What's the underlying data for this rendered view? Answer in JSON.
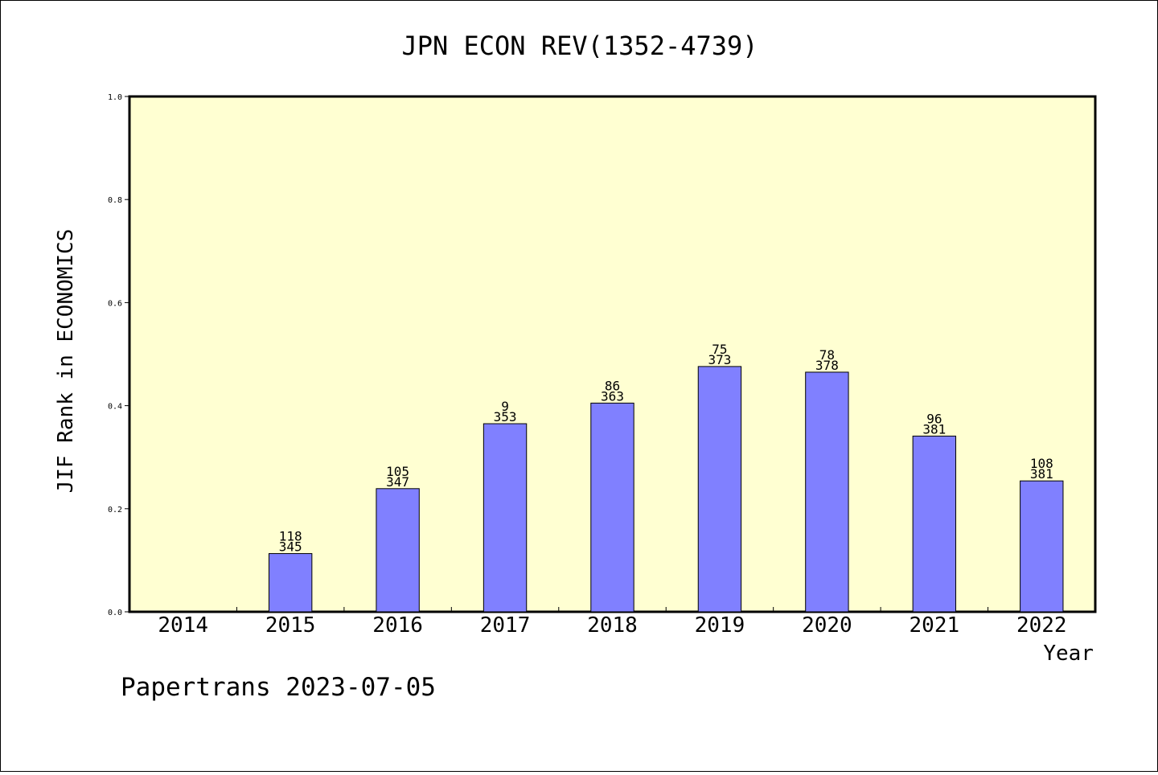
{
  "chart_data": {
    "type": "bar",
    "title": "JPN ECON REV(1352-4739)",
    "xlabel": "Year",
    "ylabel": "JIF Rank in ECONOMICS",
    "ylim": [
      0,
      1.0
    ],
    "yticks": [
      "0.0",
      "0.2",
      "0.4",
      "0.6",
      "0.8",
      "1.0"
    ],
    "categories": [
      "2014",
      "2015",
      "2016",
      "2017",
      "2018",
      "2019",
      "2020",
      "2021",
      "2022"
    ],
    "values": [
      null,
      0.113,
      0.239,
      0.365,
      0.405,
      0.476,
      0.465,
      0.341,
      0.254
    ],
    "ranks": [
      "",
      "118",
      "105",
      "9",
      "86",
      "75",
      "78",
      "96",
      "108"
    ],
    "totals": [
      "",
      "345",
      "347",
      "353",
      "363",
      "373",
      "378",
      "381",
      "381"
    ],
    "grid": false,
    "colors": {
      "plot_background": "#ffffd2",
      "bar_fill": "#8080ff",
      "bar_stroke": "#000000"
    }
  },
  "footer": {
    "text": "Papertrans 2023-07-05"
  }
}
